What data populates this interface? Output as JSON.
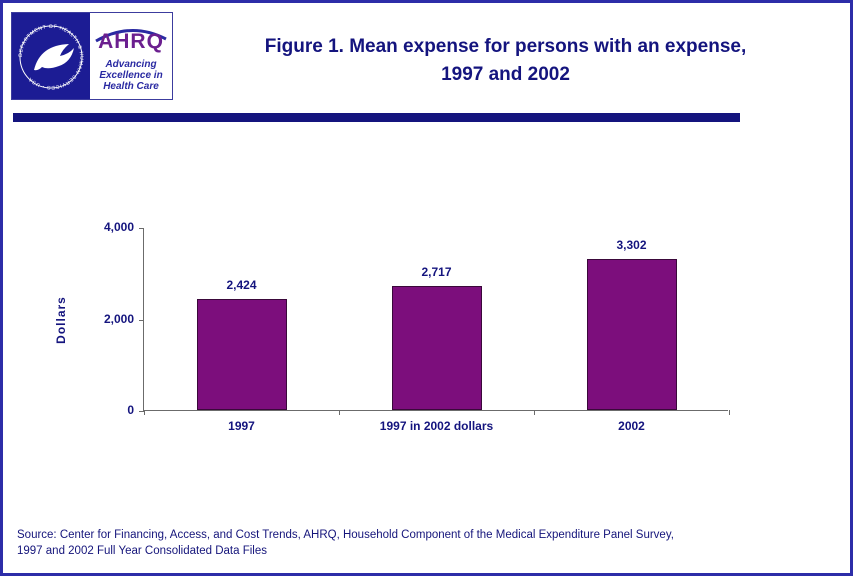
{
  "header": {
    "hhs_seal_text": "DEPARTMENT OF HEALTH & HUMAN SERVICES • USA",
    "ahrq": {
      "name": "AHRQ",
      "tagline1": "Advancing",
      "tagline2": "Excellence in",
      "tagline3": "Health Care"
    },
    "title_line1": "Figure 1. Mean expense for persons with an expense,",
    "title_line2": "1997 and 2002"
  },
  "chart_data": {
    "type": "bar",
    "title": "Figure 1. Mean expense for persons with an expense, 1997 and 2002",
    "categories": [
      "1997",
      "1997 in 2002 dollars",
      "2002"
    ],
    "values": [
      2424,
      2717,
      3302
    ],
    "value_labels": [
      "2,424",
      "2,717",
      "3,302"
    ],
    "xlabel": "",
    "ylabel": "Dollars",
    "ylim": [
      0,
      4000
    ],
    "yticks": [
      0,
      2000,
      4000
    ],
    "ytick_labels": [
      "0",
      "2,000",
      "4,000"
    ],
    "bar_color": "#7c0e7c",
    "grid": false,
    "legend": false
  },
  "footer": {
    "source_line1": "Source: Center for Financing, Access, and Cost Trends, AHRQ, Household Component of the Medical Expenditure Panel Survey,",
    "source_line2": "1997 and 2002 Full Year Consolidated Data Files"
  },
  "colors": {
    "navy_text": "#14147e",
    "border_blue": "#2d2da8",
    "bar_purple": "#7c0e7c",
    "hhs_blue": "#1c1c94"
  }
}
